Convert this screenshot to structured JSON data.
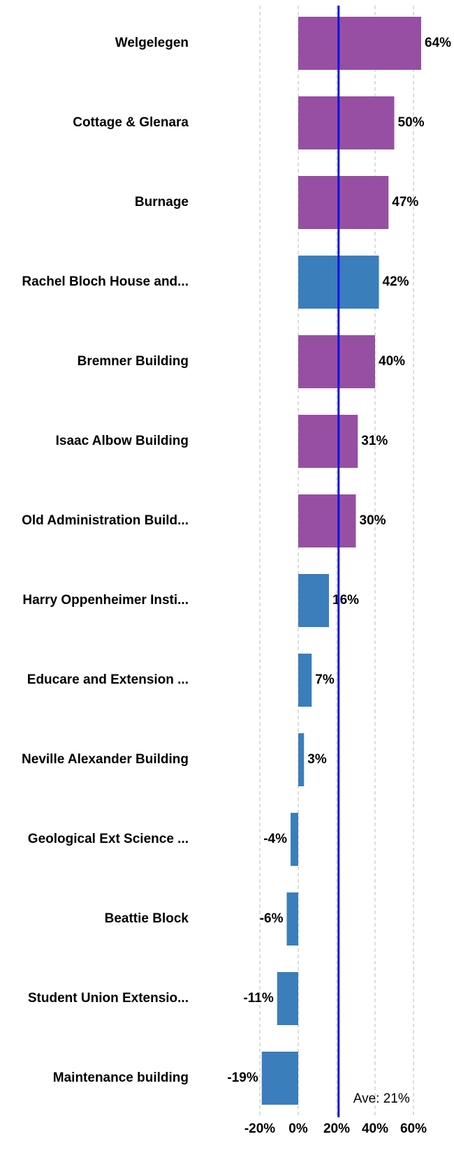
{
  "chart_data": {
    "type": "barh",
    "categories": [
      "Welgelegen",
      "Cottage & Glenara",
      "Burnage",
      "Rachel Bloch House and...",
      "Bremner Building",
      "Isaac Albow Building",
      "Old Administration Build...",
      "Harry Oppenheimer Insti...",
      "Educare and Extension ...",
      "Neville Alexander Building",
      "Geological Ext Science ...",
      "Beattie Block",
      "Student Union Extensio...",
      "Maintenance building"
    ],
    "values": [
      64,
      50,
      47,
      42,
      40,
      31,
      30,
      16,
      7,
      3,
      -4,
      -6,
      -11,
      -19
    ],
    "value_labels": [
      "64%",
      "50%",
      "47%",
      "42%",
      "40%",
      "31%",
      "30%",
      "16%",
      "7%",
      "3%",
      "-4%",
      "-6%",
      "-11%",
      "-19%"
    ],
    "colors": [
      "#974fa3",
      "#974fa3",
      "#974fa3",
      "#3a7ebc",
      "#974fa3",
      "#974fa3",
      "#974fa3",
      "#3a7ebc",
      "#3a7ebc",
      "#3a7ebc",
      "#3a7ebc",
      "#3a7ebc",
      "#3a7ebc",
      "#3a7ebc"
    ],
    "xlim": [
      -20,
      60
    ],
    "xticks": [
      {
        "value": -20,
        "label": "-20%"
      },
      {
        "value": 0,
        "label": "0%"
      },
      {
        "value": 20,
        "label": "20%"
      },
      {
        "value": 40,
        "label": "40%"
      },
      {
        "value": 60,
        "label": "60%"
      }
    ],
    "grid": true,
    "average": 21,
    "average_label": "Ave: 21%",
    "average_color": "#1010dd"
  }
}
